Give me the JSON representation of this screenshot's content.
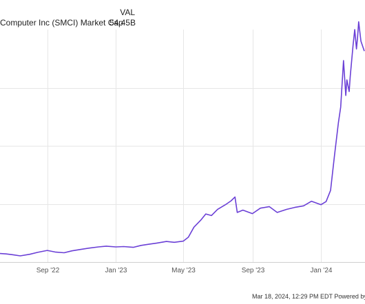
{
  "legend": {
    "column_header": "VAL",
    "series_label": "Computer Inc (SMCI) Market Cap",
    "series_value": "54.45B"
  },
  "footer": {
    "text": "Mar 18, 2024, 12:29 PM EDT Powered by"
  },
  "chart_data": {
    "type": "line",
    "title": "",
    "xlabel": "",
    "ylabel": "",
    "x_ticks": [
      "Sep '22",
      "Jan '23",
      "May '23",
      "Sep '23",
      "Jan '24"
    ],
    "x_range": [
      "2022-06-09",
      "2024-03-18"
    ],
    "ylim": [
      0,
      60
    ],
    "y_unit": "B",
    "grid": true,
    "line_color": "#6a3fd6",
    "grid_color": "#e6e6e6",
    "series": [
      {
        "x": [
          "2022-06-09",
          "2022-06-20",
          "2022-07-01",
          "2022-07-15",
          "2022-08-01",
          "2022-08-15",
          "2022-09-01",
          "2022-09-15",
          "2022-10-01",
          "2022-10-15",
          "2022-11-01",
          "2022-11-15",
          "2022-12-01",
          "2022-12-15",
          "2023-01-01",
          "2023-01-15",
          "2023-02-01",
          "2023-02-15",
          "2023-03-01",
          "2023-03-15",
          "2023-04-01",
          "2023-04-15",
          "2023-05-01",
          "2023-05-10",
          "2023-05-20",
          "2023-06-01",
          "2023-06-10",
          "2023-06-20",
          "2023-07-01",
          "2023-07-15",
          "2023-07-25",
          "2023-08-01",
          "2023-08-05",
          "2023-08-15",
          "2023-09-01",
          "2023-09-15",
          "2023-10-01",
          "2023-10-15",
          "2023-11-01",
          "2023-11-15",
          "2023-12-01",
          "2023-12-15",
          "2024-01-01",
          "2024-01-10",
          "2024-01-18",
          "2024-01-25",
          "2024-02-01",
          "2024-02-05",
          "2024-02-10",
          "2024-02-14",
          "2024-02-16",
          "2024-02-20",
          "2024-02-22",
          "2024-02-27",
          "2024-03-01",
          "2024-03-04",
          "2024-03-06",
          "2024-03-08",
          "2024-03-12",
          "2024-03-18"
        ],
        "values": [
          2.2,
          2.1,
          1.9,
          1.6,
          2.0,
          2.5,
          3.0,
          2.6,
          2.4,
          2.9,
          3.3,
          3.6,
          3.9,
          4.1,
          3.9,
          4.0,
          3.8,
          4.3,
          4.6,
          4.9,
          5.3,
          5.1,
          5.4,
          6.4,
          9.0,
          10.8,
          12.4,
          12.0,
          13.6,
          14.8,
          15.8,
          16.8,
          12.8,
          13.4,
          12.5,
          13.9,
          14.3,
          12.8,
          13.6,
          14.1,
          14.5,
          15.7,
          14.8,
          15.6,
          18.5,
          27.5,
          36.0,
          40.0,
          52.0,
          43.0,
          47.0,
          44.0,
          48.0,
          56.0,
          60.0,
          55.0,
          58.0,
          62.0,
          57.0,
          54.45
        ]
      }
    ]
  }
}
